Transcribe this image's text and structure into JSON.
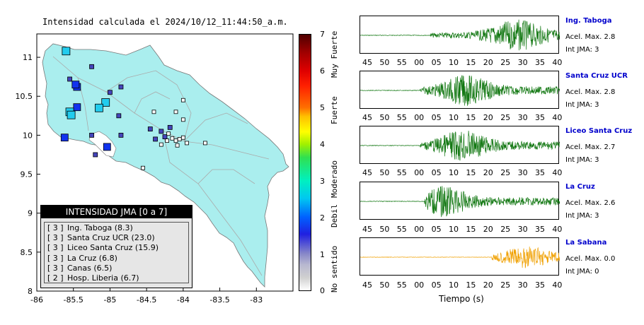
{
  "map": {
    "title": "Intensidad calculada el 2024/10/12_11:44:50_a.m.",
    "x_ticks": [
      "-86",
      "-85.5",
      "-85",
      "-84.5",
      "-84",
      "-83.5",
      "-83"
    ],
    "y_ticks": [
      "11",
      "10.5",
      "10",
      "9.5",
      "9",
      "8.5",
      "8"
    ],
    "lon_range": [
      -86,
      -82.5
    ],
    "lat_range": [
      8,
      11.3
    ],
    "colors": {
      "land": "#aaeeee",
      "sea": "#ffffff",
      "roads": "#aaaaaa"
    },
    "stations": [
      {
        "lon": -85.6,
        "lat": 11.08,
        "intensity": 3
      },
      {
        "lon": -85.45,
        "lat": 10.62,
        "intensity": 2
      },
      {
        "lon": -85.47,
        "lat": 10.65,
        "intensity": 2
      },
      {
        "lon": -85.45,
        "lat": 10.36,
        "intensity": 2
      },
      {
        "lon": -85.55,
        "lat": 10.3,
        "intensity": 3
      },
      {
        "lon": -85.53,
        "lat": 10.26,
        "intensity": 3
      },
      {
        "lon": -85.62,
        "lat": 9.97,
        "intensity": 2
      },
      {
        "lon": -85.06,
        "lat": 10.42,
        "intensity": 3
      },
      {
        "lon": -85.15,
        "lat": 10.35,
        "intensity": 3
      },
      {
        "lon": -85.04,
        "lat": 9.85,
        "intensity": 2
      },
      {
        "lon": -85.55,
        "lat": 10.72,
        "intensity": 1
      },
      {
        "lon": -85.25,
        "lat": 10.88,
        "intensity": 1
      },
      {
        "lon": -85.0,
        "lat": 10.55,
        "intensity": 1
      },
      {
        "lon": -84.85,
        "lat": 10.62,
        "intensity": 1
      },
      {
        "lon": -84.88,
        "lat": 10.25,
        "intensity": 1
      },
      {
        "lon": -85.25,
        "lat": 10.0,
        "intensity": 1
      },
      {
        "lon": -85.2,
        "lat": 9.75,
        "intensity": 1
      },
      {
        "lon": -84.85,
        "lat": 10.0,
        "intensity": 1
      },
      {
        "lon": -84.45,
        "lat": 10.08,
        "intensity": 1
      },
      {
        "lon": -84.38,
        "lat": 9.95,
        "intensity": 1
      },
      {
        "lon": -84.3,
        "lat": 10.05,
        "intensity": 1
      },
      {
        "lon": -84.25,
        "lat": 9.98,
        "intensity": 1
      },
      {
        "lon": -84.2,
        "lat": 10.02,
        "intensity": 0
      },
      {
        "lon": -84.15,
        "lat": 9.96,
        "intensity": 0
      },
      {
        "lon": -84.1,
        "lat": 9.93,
        "intensity": 0
      },
      {
        "lon": -84.05,
        "lat": 9.95,
        "intensity": 0
      },
      {
        "lon": -84.0,
        "lat": 9.97,
        "intensity": 0
      },
      {
        "lon": -83.95,
        "lat": 9.9,
        "intensity": 0
      },
      {
        "lon": -84.08,
        "lat": 9.87,
        "intensity": 0
      },
      {
        "lon": -84.3,
        "lat": 9.88,
        "intensity": 0
      },
      {
        "lon": -84.55,
        "lat": 9.58,
        "intensity": 0
      },
      {
        "lon": -84.0,
        "lat": 10.45,
        "intensity": 0
      },
      {
        "lon": -84.1,
        "lat": 10.3,
        "intensity": 0
      },
      {
        "lon": -84.0,
        "lat": 10.2,
        "intensity": 0
      },
      {
        "lon": -84.4,
        "lat": 10.3,
        "intensity": 0
      },
      {
        "lon": -83.7,
        "lat": 9.9,
        "intensity": 0
      },
      {
        "lon": -84.18,
        "lat": 10.1,
        "intensity": 1
      },
      {
        "lon": -84.22,
        "lat": 9.93,
        "intensity": 0
      }
    ],
    "legend": {
      "title": "INTENSIDAD JMA [0 a 7]",
      "items": [
        {
          "int": "[ 3 ]",
          "name": "Ing. Taboga (8.3)"
        },
        {
          "int": "[ 3 ]",
          "name": "Santa Cruz UCR (23.0)"
        },
        {
          "int": "[ 3 ]",
          "name": "Liceo Santa Cruz (15.9)"
        },
        {
          "int": "[ 3 ]",
          "name": "La Cruz (6.8)"
        },
        {
          "int": "[ 3 ]",
          "name": "Canas (6.5)"
        },
        {
          "int": "[ 2 ]",
          "name": "Hosp. Liberia (6.7)"
        }
      ]
    }
  },
  "colorbar": {
    "ticks": [
      "7",
      "6",
      "5",
      "4",
      "3",
      "2",
      "1",
      "0"
    ],
    "labels": [
      "Muy Fuerte",
      "Fuerte",
      "Moderado",
      "Debil",
      "No sentido"
    ]
  },
  "traces": {
    "x_ticks": [
      "45",
      "50",
      "55",
      "00",
      "05",
      "10",
      "15",
      "20",
      "25",
      "30",
      "35",
      "40"
    ],
    "x_label": "Tiempo (s)",
    "stations": [
      {
        "name": "Ing. Taboga",
        "acel": "Acel. Max. 2.8",
        "int": "Int JMA: 3",
        "color": "#117711",
        "onset": 0.35,
        "peak": 0.78,
        "amp": 0.9
      },
      {
        "name": "Santa Cruz UCR",
        "acel": "Acel. Max. 2.8",
        "int": "Int JMA: 3",
        "color": "#117711",
        "onset": 0.3,
        "peak": 0.52,
        "amp": 0.9
      },
      {
        "name": "Liceo Santa Cruz",
        "acel": "Acel. Max. 2.7",
        "int": "Int JMA: 3",
        "color": "#117711",
        "onset": 0.3,
        "peak": 0.5,
        "amp": 0.9
      },
      {
        "name": "La Cruz",
        "acel": "Acel. Max. 2.6",
        "int": "Int JMA: 3",
        "color": "#117711",
        "onset": 0.32,
        "peak": 0.4,
        "amp": 0.9
      },
      {
        "name": "La Sabana",
        "acel": "Acel. Max. 0.0",
        "int": "Int JMA: 0",
        "color": "#f0a000",
        "onset": 0.66,
        "peak": 0.82,
        "amp": 0.65
      }
    ]
  }
}
